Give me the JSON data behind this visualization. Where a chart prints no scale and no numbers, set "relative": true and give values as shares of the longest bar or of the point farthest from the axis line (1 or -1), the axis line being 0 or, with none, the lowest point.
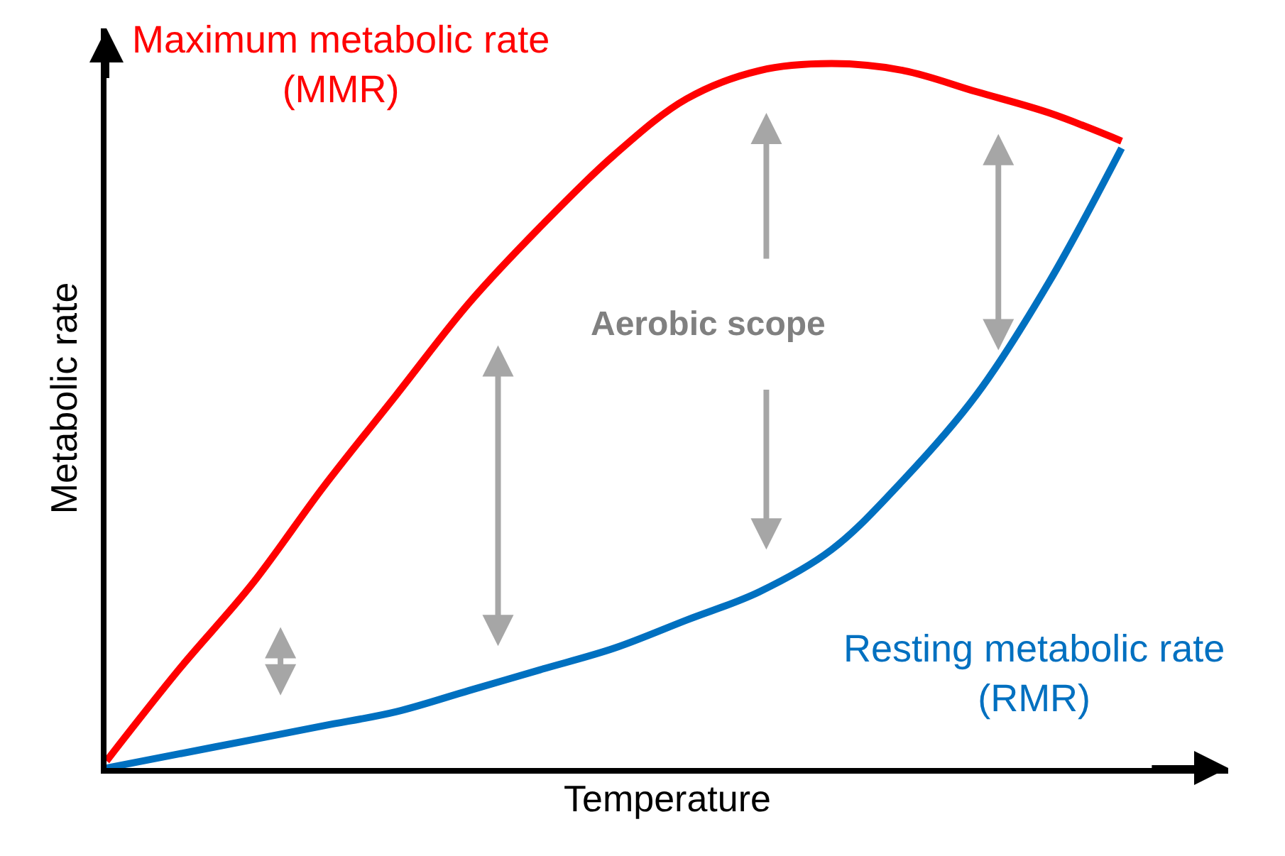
{
  "chart_data": {
    "type": "line",
    "relative": true,
    "xlabel": "Temperature",
    "ylabel": "Metabolic rate",
    "categories": [
      null,
      null,
      null,
      null,
      null,
      null,
      null,
      null,
      null,
      null,
      null,
      null,
      null,
      null,
      null
    ],
    "series": [
      {
        "name": "Maximum metabolic rate\n(MMR)",
        "color": "#ff0000",
        "values": [
          0.01,
          0.14,
          0.26,
          0.4,
          0.53,
          0.66,
          0.77,
          0.87,
          0.95,
          0.99,
          1,
          0.99,
          0.96,
          0.93,
          0.89
        ]
      },
      {
        "name": "Resting metabolic rate\n(RMR)",
        "color": "#0070c0",
        "values": [
          0,
          0.02,
          0.04,
          0.06,
          0.08,
          0.11,
          0.14,
          0.17,
          0.21,
          0.25,
          0.31,
          0.41,
          0.53,
          0.69,
          0.88
        ]
      }
    ],
    "annotations": [
      "Aerobic scope"
    ],
    "legend": false,
    "marker": "none",
    "line_style": "solid"
  }
}
